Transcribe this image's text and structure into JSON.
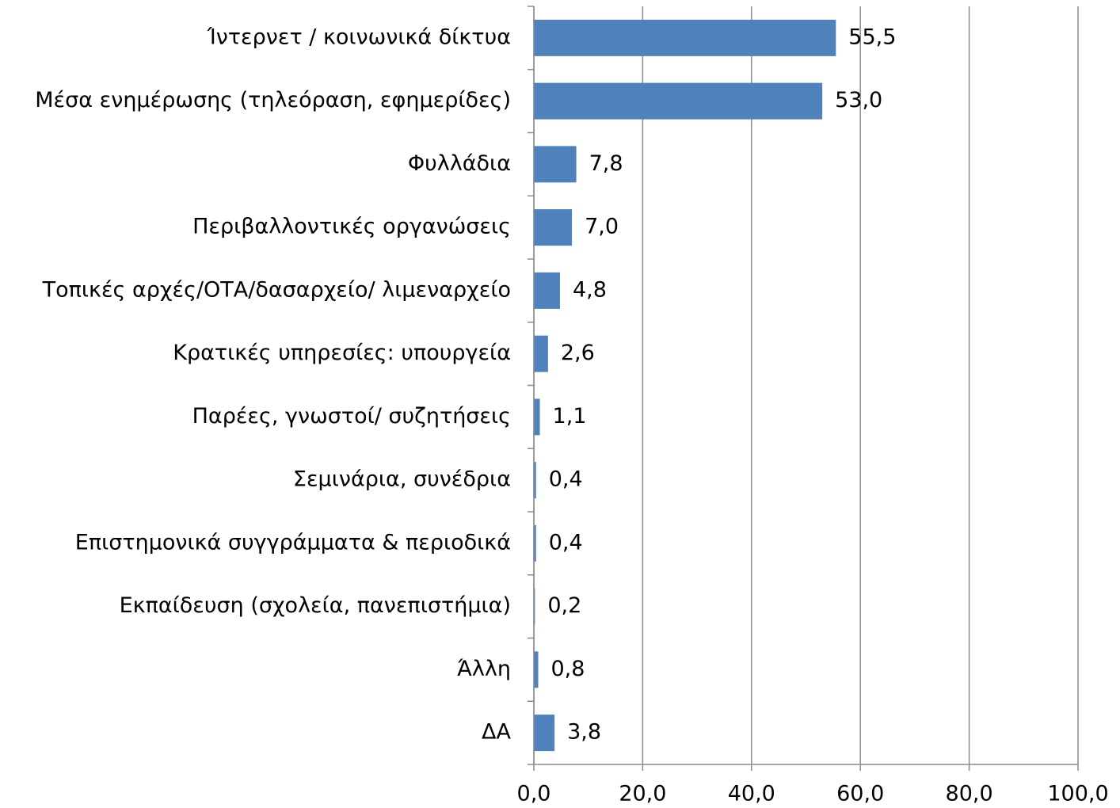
{
  "chart_data": {
    "type": "bar",
    "orientation": "horizontal",
    "categories": [
      "Ίντερνετ / κοινωνικά δίκτυα",
      "Μέσα ενημέρωσης (τηλεόραση, εφημερίδες)",
      "Φυλλάδια",
      "Περιβαλλοντικές οργανώσεις",
      "Τοπικές αρχές/ΟΤΑ/δασαρχείο/ λιμεναρχείο",
      "Κρατικές υπηρεσίες: υπουργεία",
      "Παρέες, γνωστοί/ συζητήσεις",
      "Σεμινάρια, συνέδρια",
      "Επιστημονικά συγγράμματα & περιοδικά",
      "Εκπαίδευση (σχολεία, πανεπιστήμια)",
      "Άλλη",
      "ΔΑ"
    ],
    "values": [
      55.5,
      53.0,
      7.8,
      7.0,
      4.8,
      2.6,
      1.1,
      0.4,
      0.4,
      0.2,
      0.8,
      3.8
    ],
    "value_labels": [
      "55,5",
      "53,0",
      "7,8",
      "7,0",
      "4,8",
      "2,6",
      "1,1",
      "0,4",
      "0,4",
      "0,2",
      "0,8",
      "3,8"
    ],
    "color": "#4f81bd",
    "xlim": [
      0,
      100
    ],
    "xticks": [
      {
        "value": 0,
        "label": "0,0"
      },
      {
        "value": 20,
        "label": "20,0"
      },
      {
        "value": 40,
        "label": "40,0"
      },
      {
        "value": 60,
        "label": "60,0"
      },
      {
        "value": 80,
        "label": "80,0"
      },
      {
        "value": 100,
        "label": "100,0"
      }
    ],
    "grid": true
  }
}
